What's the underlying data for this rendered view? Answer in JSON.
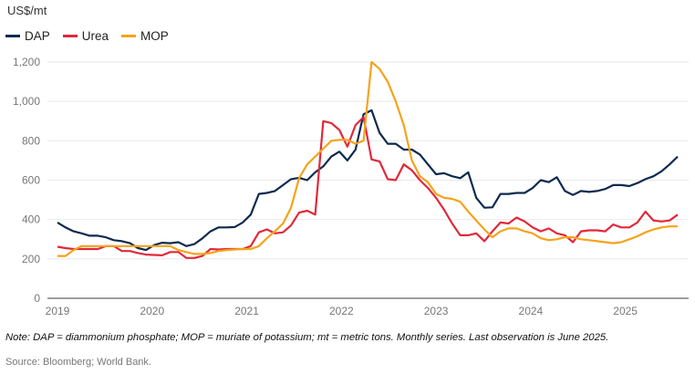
{
  "chart_data": {
    "type": "line",
    "title": "",
    "ylabel": "US$/mt",
    "xlabel": "",
    "ylim": [
      0,
      1200
    ],
    "yticks": [
      0,
      200,
      400,
      600,
      800,
      1000,
      1200
    ],
    "ytick_labels": [
      "0",
      "200",
      "400",
      "600",
      "800",
      "1,000",
      "1,200"
    ],
    "xtick_labels": [
      "2019",
      "2020",
      "2021",
      "2022",
      "2023",
      "2024",
      "2025"
    ],
    "x_start": "Jan 2019",
    "x_end": "Jun 2025",
    "frequency": "monthly",
    "grid": true,
    "legend_position": "top-left",
    "series": [
      {
        "name": "DAP",
        "color": "#0d2a4f",
        "values": [
          385,
          360,
          340,
          330,
          318,
          318,
          310,
          295,
          290,
          280,
          255,
          245,
          270,
          282,
          280,
          285,
          265,
          275,
          305,
          340,
          360,
          360,
          362,
          385,
          425,
          530,
          535,
          545,
          575,
          605,
          612,
          600,
          640,
          670,
          720,
          745,
          700,
          755,
          935,
          955,
          840,
          785,
          785,
          755,
          755,
          730,
          680,
          630,
          635,
          620,
          610,
          640,
          510,
          460,
          462,
          530,
          530,
          535,
          535,
          560,
          600,
          590,
          615,
          545,
          525,
          545,
          540,
          545,
          555,
          575,
          575,
          570,
          585,
          605,
          620,
          645,
          680,
          720
        ]
      },
      {
        "name": "Urea",
        "color": "#e0293a",
        "values": [
          262,
          255,
          250,
          250,
          250,
          250,
          265,
          265,
          240,
          240,
          230,
          222,
          220,
          218,
          235,
          235,
          205,
          205,
          215,
          250,
          248,
          250,
          250,
          250,
          265,
          335,
          350,
          330,
          335,
          370,
          435,
          445,
          425,
          900,
          890,
          855,
          770,
          880,
          920,
          705,
          695,
          605,
          600,
          680,
          650,
          600,
          560,
          510,
          450,
          380,
          320,
          320,
          330,
          290,
          340,
          385,
          380,
          410,
          390,
          360,
          340,
          355,
          330,
          320,
          285,
          340,
          345,
          345,
          340,
          375,
          360,
          360,
          385,
          440,
          395,
          390,
          395,
          425
        ]
      },
      {
        "name": "MOP",
        "color": "#f5a31a",
        "values": [
          215,
          215,
          245,
          265,
          265,
          265,
          265,
          265,
          265,
          265,
          265,
          265,
          265,
          265,
          265,
          245,
          235,
          225,
          225,
          230,
          240,
          245,
          248,
          250,
          250,
          265,
          305,
          340,
          380,
          460,
          610,
          680,
          720,
          760,
          800,
          805,
          805,
          785,
          800,
          1200,
          1165,
          1100,
          1000,
          880,
          700,
          620,
          590,
          530,
          510,
          505,
          490,
          440,
          395,
          350,
          310,
          340,
          355,
          355,
          340,
          330,
          305,
          295,
          300,
          310,
          310,
          300,
          295,
          290,
          285,
          280,
          285,
          300,
          315,
          335,
          350,
          360,
          365,
          365
        ]
      }
    ]
  },
  "unit_label": "US$/mt",
  "legend": [
    {
      "label": "DAP",
      "color": "#0d2a4f"
    },
    {
      "label": "Urea",
      "color": "#e0293a"
    },
    {
      "label": "MOP",
      "color": "#f5a31a"
    }
  ],
  "note": "Note: DAP = diammonium phosphate; MOP = muriate of potassium; mt = metric tons. Monthly series. Last observation is June 2025.",
  "source": "Source: Bloomberg; World Bank."
}
